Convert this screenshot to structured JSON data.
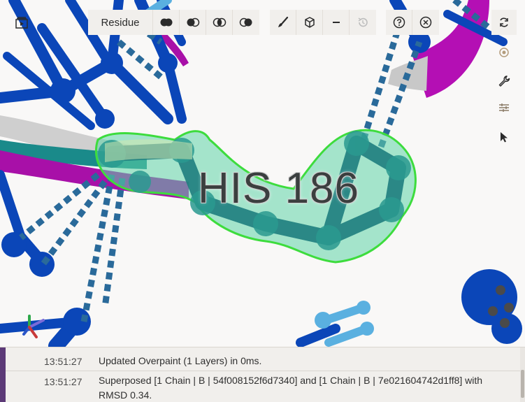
{
  "toolbar": {
    "selection_mode_label": "Residue",
    "buttons": [
      {
        "name": "union-icon"
      },
      {
        "name": "subtract-icon"
      },
      {
        "name": "intersect-icon"
      },
      {
        "name": "set-difference-icon"
      },
      {
        "name": "brush-icon"
      },
      {
        "name": "cube-icon"
      },
      {
        "name": "minus-icon"
      },
      {
        "name": "history-icon"
      },
      {
        "name": "help-icon"
      },
      {
        "name": "close-icon"
      }
    ]
  },
  "viewport": {
    "residue_label": "HIS 186",
    "colors": {
      "backbone_blue": "#0b46b8",
      "dashes": "#2a6a9a",
      "teal": "#1f7f7f",
      "mint": "#5fd3a8",
      "magenta": "#b40fb4",
      "highlight_green": "#3ddc3d",
      "light_blue": "#5ab0e0"
    }
  },
  "side_toolbar": [
    {
      "name": "reset-view-icon"
    },
    {
      "name": "screenshot-icon"
    },
    {
      "name": "wrench-icon"
    },
    {
      "name": "sliders-icon"
    },
    {
      "name": "pointer-icon"
    }
  ],
  "log": {
    "entries": [
      {
        "time": "13:51:27",
        "message": "Updated Overpaint (1 Layers) in 0ms."
      },
      {
        "time": "13:51:27",
        "message": "Superposed [1 Chain | B | 54f008152f6d7340] and [1 Chain | B | 7e021604742d1ff8] with RMSD 0.34."
      }
    ]
  }
}
